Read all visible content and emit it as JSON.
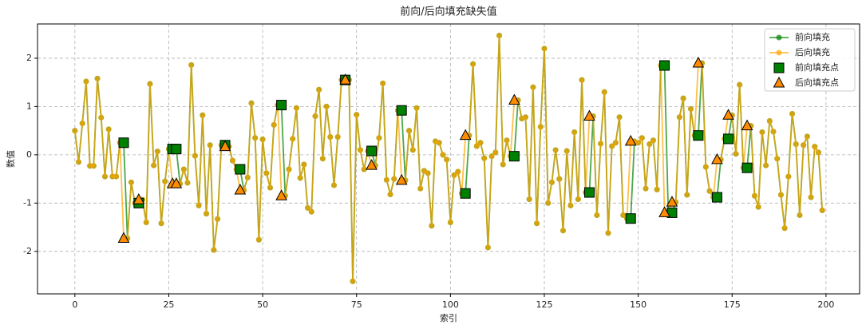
{
  "chart_data": {
    "type": "line",
    "title": "前向/后向填充缺失值",
    "x_label": "索引",
    "y_label": "数值",
    "xlim": [
      -9.95,
      208.95
    ],
    "ylim": [
      -2.88,
      2.71
    ],
    "xticks": [
      0,
      25,
      50,
      75,
      100,
      125,
      150,
      175,
      200
    ],
    "yticks": [
      -2,
      -1,
      0,
      1,
      2
    ],
    "grid": true,
    "legend": "upper right",
    "series": [
      {
        "name": "前向填充",
        "color": "green",
        "marker": "circle",
        "values": [
          0.5,
          -0.15,
          0.65,
          1.52,
          -0.23,
          -0.23,
          1.58,
          0.77,
          -0.45,
          0.53,
          -0.45,
          -0.45,
          0.25,
          0.25,
          -1.73,
          -0.57,
          -1.0,
          -1.0,
          -0.93,
          -1.4,
          1.47,
          -0.22,
          0.07,
          -1.42,
          -0.55,
          0.12,
          0.12,
          0.12,
          -0.6,
          -0.3,
          -0.58,
          1.86,
          -0.02,
          -1.05,
          0.82,
          -1.22,
          0.2,
          -1.97,
          -1.33,
          0.2,
          0.2,
          0.17,
          -0.12,
          -0.3,
          -0.3,
          -0.73,
          -0.47,
          1.07,
          0.35,
          -1.76,
          0.32,
          -0.38,
          -0.68,
          0.62,
          1.03,
          1.03,
          -0.85,
          -0.3,
          0.33,
          0.97,
          -0.48,
          -0.2,
          -1.1,
          -1.18,
          0.8,
          1.35,
          -0.08,
          1.0,
          0.37,
          -0.63,
          0.37,
          1.55,
          1.55,
          1.55,
          -2.62,
          0.83,
          0.1,
          -0.3,
          0.08,
          0.08,
          -0.22,
          0.35,
          1.48,
          -0.52,
          -0.82,
          -0.5,
          0.92,
          0.92,
          -0.53,
          0.5,
          0.1,
          0.97,
          -0.7,
          -0.33,
          -0.38,
          -1.47,
          0.28,
          0.25,
          0.0,
          -0.1,
          -1.4,
          -0.42,
          -0.35,
          -0.8,
          -0.8,
          0.4,
          1.88,
          0.18,
          0.25,
          -0.07,
          -1.92,
          -0.03,
          0.05,
          2.47,
          -0.2,
          0.3,
          -0.03,
          -0.03,
          1.13,
          0.75,
          0.78,
          -0.92,
          1.4,
          -1.42,
          0.58,
          2.2,
          -1.0,
          -0.57,
          0.1,
          -0.5,
          -1.57,
          0.08,
          -1.05,
          0.47,
          -0.92,
          1.55,
          -0.78,
          -0.78,
          0.8,
          -1.25,
          0.23,
          1.3,
          -1.62,
          0.18,
          0.25,
          0.78,
          -1.25,
          -1.32,
          -1.32,
          0.28,
          0.25,
          0.35,
          -0.7,
          0.22,
          0.3,
          -0.72,
          1.85,
          1.85,
          -1.2,
          -1.2,
          -0.98,
          0.78,
          1.17,
          -0.83,
          0.95,
          0.4,
          0.4,
          1.9,
          -0.25,
          -0.75,
          -0.88,
          -0.88,
          -0.1,
          0.33,
          0.33,
          0.82,
          0.02,
          1.45,
          -0.27,
          -0.27,
          0.6,
          -0.85,
          -1.08,
          0.47,
          -0.22,
          0.7,
          0.48,
          -0.08,
          -0.83,
          -1.52,
          -0.45,
          0.85,
          0.22,
          -1.25,
          0.2,
          0.38,
          -0.88,
          0.17,
          0.05,
          -1.15
        ]
      },
      {
        "name": "后向填充",
        "color": "orange",
        "marker": "circle",
        "values": [
          0.5,
          -0.15,
          0.65,
          1.52,
          -0.23,
          -0.23,
          1.58,
          0.77,
          -0.45,
          0.53,
          -0.45,
          -0.45,
          0.25,
          -1.73,
          -1.73,
          -0.57,
          -1.0,
          -0.93,
          -0.93,
          -1.4,
          1.47,
          -0.22,
          0.07,
          -1.42,
          -0.55,
          0.12,
          -0.6,
          -0.6,
          -0.6,
          -0.3,
          -0.58,
          1.86,
          -0.02,
          -1.05,
          0.82,
          -1.22,
          0.2,
          -1.97,
          -1.33,
          0.2,
          0.17,
          0.17,
          -0.12,
          -0.3,
          -0.73,
          -0.73,
          -0.47,
          1.07,
          0.35,
          -1.76,
          0.32,
          -0.38,
          -0.68,
          0.62,
          1.03,
          -0.85,
          -0.85,
          -0.3,
          0.33,
          0.97,
          -0.48,
          -0.2,
          -1.1,
          -1.18,
          0.8,
          1.35,
          -0.08,
          1.0,
          0.37,
          -0.63,
          0.37,
          1.55,
          1.55,
          1.55,
          -2.62,
          0.83,
          0.1,
          -0.3,
          0.08,
          -0.22,
          -0.22,
          0.35,
          1.48,
          -0.52,
          -0.82,
          -0.5,
          0.92,
          -0.53,
          -0.53,
          0.5,
          0.1,
          0.97,
          -0.7,
          -0.33,
          -0.38,
          -1.47,
          0.28,
          0.25,
          0.0,
          -0.1,
          -1.4,
          -0.42,
          -0.35,
          -0.8,
          0.4,
          0.4,
          1.88,
          0.18,
          0.25,
          -0.07,
          -1.92,
          -0.03,
          0.05,
          2.47,
          -0.2,
          0.3,
          -0.03,
          1.13,
          1.13,
          0.75,
          0.78,
          -0.92,
          1.4,
          -1.42,
          0.58,
          2.2,
          -1.0,
          -0.57,
          0.1,
          -0.5,
          -1.57,
          0.08,
          -1.05,
          0.47,
          -0.92,
          1.55,
          -0.78,
          0.8,
          0.8,
          -1.25,
          0.23,
          1.3,
          -1.62,
          0.18,
          0.25,
          0.78,
          -1.25,
          -1.32,
          0.28,
          0.28,
          0.25,
          0.35,
          -0.7,
          0.22,
          0.3,
          -0.72,
          1.85,
          -1.2,
          -1.2,
          -0.98,
          -0.98,
          0.78,
          1.17,
          -0.83,
          0.95,
          0.4,
          1.9,
          1.9,
          -0.25,
          -0.75,
          -0.88,
          -0.1,
          -0.1,
          0.33,
          0.82,
          0.82,
          0.02,
          1.45,
          -0.27,
          0.6,
          0.6,
          -0.85,
          -1.08,
          0.47,
          -0.22,
          0.7,
          0.48,
          -0.08,
          -0.83,
          -1.52,
          -0.45,
          0.85,
          0.22,
          -1.25,
          0.2,
          0.38,
          -0.88,
          0.17,
          0.05,
          -1.15
        ]
      },
      {
        "name": "前向填充点",
        "color": "green",
        "marker": "square",
        "x": [
          13,
          17,
          26,
          27,
          40,
          44,
          55,
          72,
          79,
          87,
          104,
          117,
          137,
          148,
          157,
          159,
          166,
          171,
          174,
          179
        ],
        "values": [
          0.25,
          -1.0,
          0.12,
          0.12,
          0.2,
          -0.3,
          1.03,
          1.55,
          0.08,
          0.92,
          -0.8,
          -0.03,
          -0.78,
          -1.32,
          1.85,
          -1.2,
          0.4,
          -0.88,
          0.33,
          -0.27
        ]
      },
      {
        "name": "后向填充点",
        "color": "darkorange",
        "marker": "triangle",
        "x": [
          13,
          17,
          26,
          27,
          40,
          44,
          55,
          72,
          79,
          87,
          104,
          117,
          137,
          148,
          157,
          159,
          166,
          171,
          174,
          179
        ],
        "values": [
          -1.73,
          -0.93,
          -0.6,
          -0.6,
          0.17,
          -0.73,
          -0.85,
          1.55,
          -0.22,
          -0.53,
          0.4,
          1.13,
          0.8,
          0.28,
          -1.2,
          -0.98,
          1.9,
          -0.1,
          0.82,
          0.6
        ]
      }
    ]
  }
}
